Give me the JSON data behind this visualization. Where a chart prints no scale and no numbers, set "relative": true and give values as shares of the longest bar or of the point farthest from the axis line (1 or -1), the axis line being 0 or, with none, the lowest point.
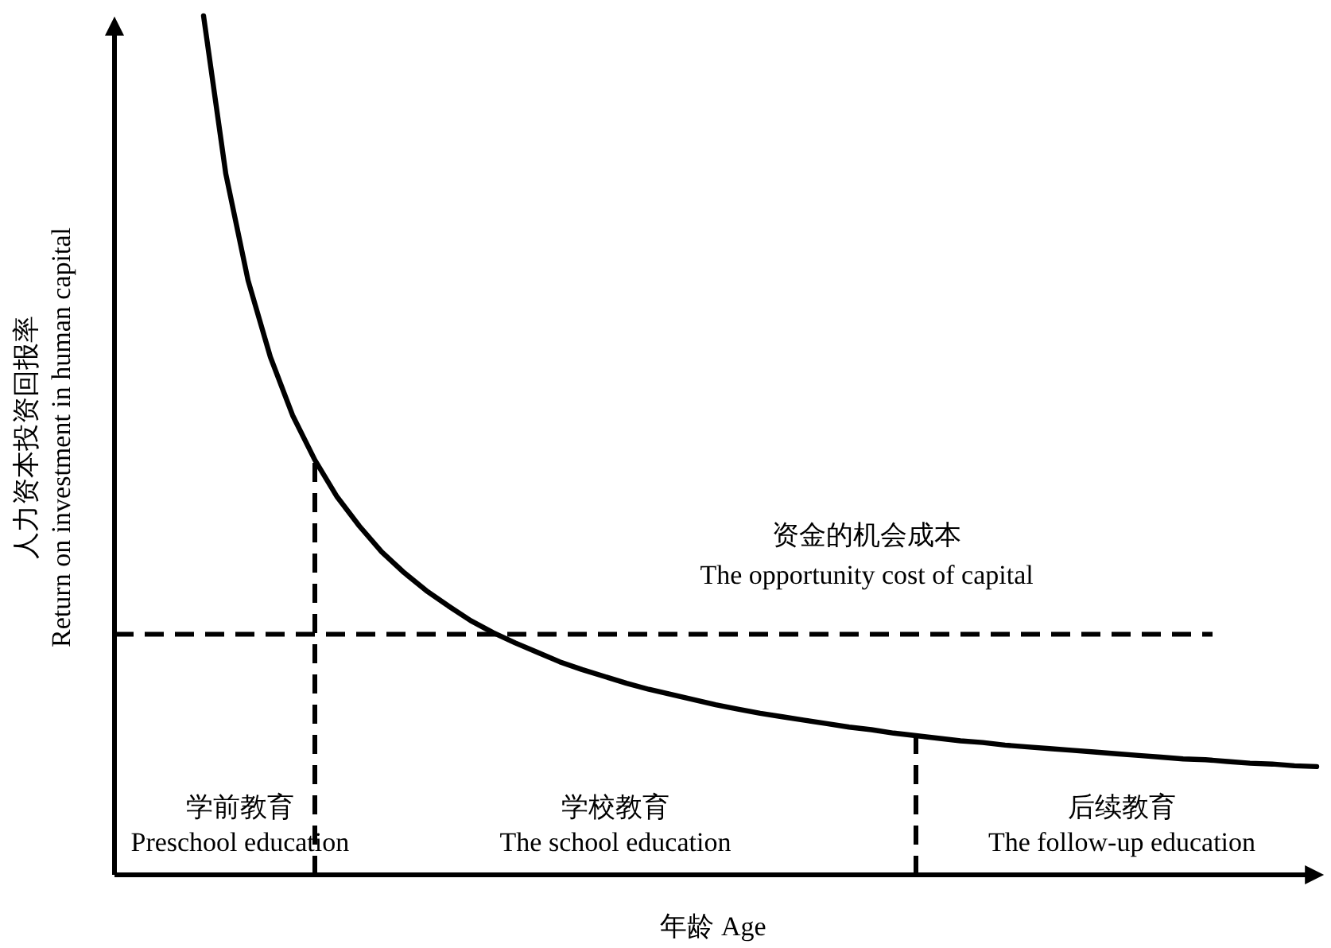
{
  "chart_data": {
    "type": "line",
    "relative": true,
    "xlabel": "年龄 Age",
    "ylabel": "人力资本投资回报率\nReturn on investment in human capital",
    "categories": [
      null,
      null,
      null,
      null,
      null,
      null,
      null,
      null,
      null,
      null,
      null,
      null,
      null,
      null,
      null,
      null,
      null,
      null,
      null,
      null,
      null,
      null,
      null,
      null,
      null,
      null,
      null,
      null,
      null,
      null,
      null,
      null,
      null,
      null,
      null,
      null,
      null,
      null,
      null,
      null,
      null,
      null,
      null,
      null,
      null,
      null,
      null,
      null,
      null,
      null,
      null
    ],
    "series": [
      {
        "color": "#000000",
        "line_style": "solid",
        "values": [
          1.0,
          0.816,
          0.692,
          0.603,
          0.535,
          0.483,
          0.44,
          0.406,
          0.376,
          0.352,
          0.331,
          0.313,
          0.296,
          0.282,
          0.27,
          0.259,
          0.248,
          0.239,
          0.231,
          0.223,
          0.216,
          0.21,
          0.204,
          0.198,
          0.193,
          0.188,
          0.184,
          0.18,
          0.176,
          0.172,
          0.169,
          0.165,
          0.162,
          0.159,
          0.156,
          0.154,
          0.151,
          0.149,
          0.147,
          0.145,
          0.143,
          0.141,
          0.139,
          0.137,
          0.135,
          0.134,
          0.132,
          0.13,
          0.129,
          0.127,
          0.126
        ]
      }
    ],
    "ref_lines": [
      {
        "axis": "y",
        "value": 0.28,
        "label": "资金的机会成本\nThe opportunity cost of capital",
        "color": "#000000",
        "line_style": "dashed"
      }
    ],
    "annotations": [
      "学前教育\nPreschool education",
      "学校教育\nThe school education",
      "后续教育\nThe follow-up education"
    ]
  }
}
